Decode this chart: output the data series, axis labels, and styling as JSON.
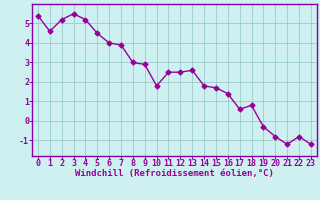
{
  "x": [
    0,
    1,
    2,
    3,
    4,
    5,
    6,
    7,
    8,
    9,
    10,
    11,
    12,
    13,
    14,
    15,
    16,
    17,
    18,
    19,
    20,
    21,
    22,
    23
  ],
  "y": [
    5.4,
    4.6,
    5.2,
    5.5,
    5.2,
    4.5,
    4.0,
    3.9,
    3.0,
    2.9,
    1.8,
    2.5,
    2.5,
    2.6,
    1.8,
    1.7,
    1.4,
    0.6,
    0.8,
    -0.3,
    -0.8,
    -1.2,
    -0.8,
    -1.2
  ],
  "line_color": "#990099",
  "marker": "D",
  "markersize": 2.5,
  "linewidth": 1.0,
  "xlabel": "Windchill (Refroidissement éolien,°C)",
  "xlabel_fontsize": 6.5,
  "ylabel": "",
  "ylim": [
    -1.8,
    6.0
  ],
  "xlim": [
    -0.5,
    23.5
  ],
  "yticks": [
    -1,
    0,
    1,
    2,
    3,
    4,
    5
  ],
  "xticks": [
    0,
    1,
    2,
    3,
    4,
    5,
    6,
    7,
    8,
    9,
    10,
    11,
    12,
    13,
    14,
    15,
    16,
    17,
    18,
    19,
    20,
    21,
    22,
    23
  ],
  "background_color": "#cff0f0",
  "grid_color": "#99cccc",
  "tick_fontsize": 6.0,
  "spine_color": "#8800aa",
  "title": ""
}
